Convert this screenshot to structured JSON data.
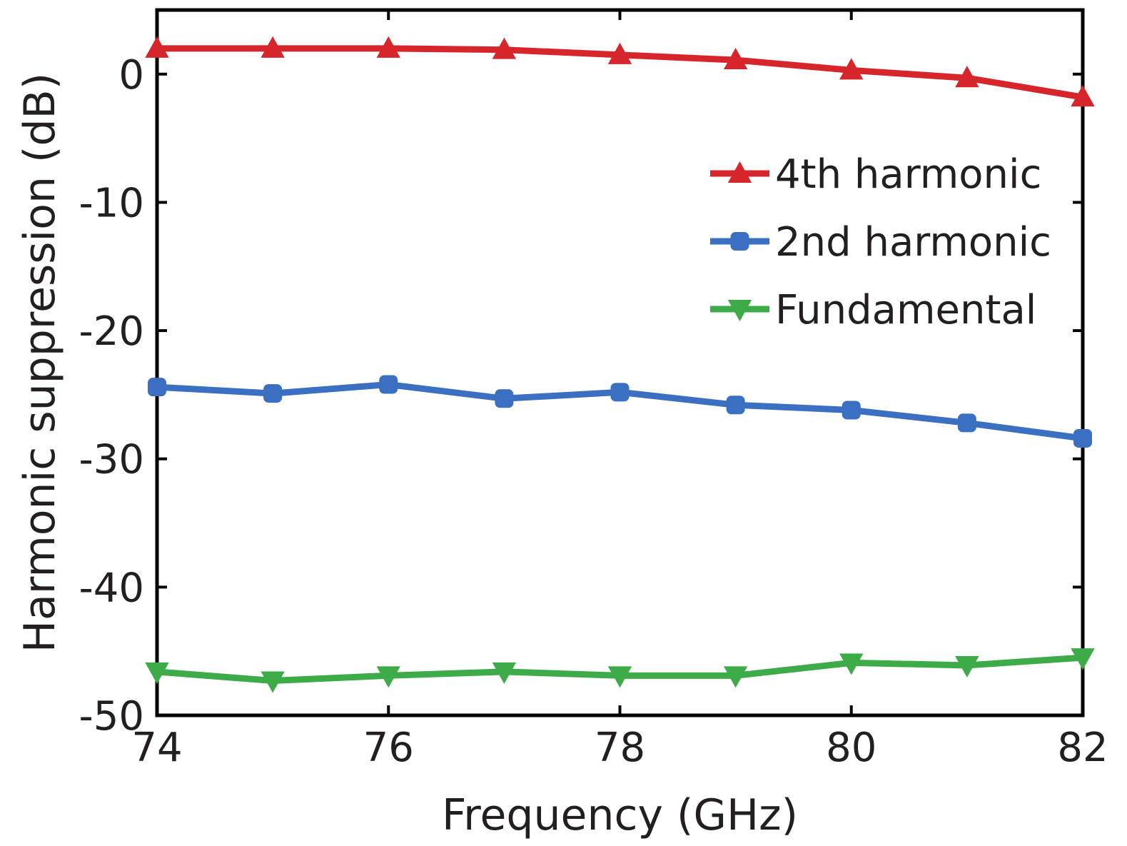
{
  "chart_data": {
    "type": "line",
    "xlabel": "Frequency (GHz)",
    "ylabel": "Harmonic suppression (dB)",
    "xlim": [
      74,
      82
    ],
    "ylim": [
      -50,
      5
    ],
    "xticks": [
      74,
      76,
      78,
      80,
      82
    ],
    "yticks": [
      0,
      -10,
      -20,
      -30,
      -40,
      -50
    ],
    "x": [
      74,
      75,
      76,
      77,
      78,
      79,
      80,
      81,
      82
    ],
    "grid": false,
    "legend_position": "top-right",
    "series": [
      {
        "name": "4th harmonic",
        "color": "#d7262b",
        "marker": "triangle-up",
        "values": [
          2.0,
          2.0,
          2.0,
          1.9,
          1.5,
          1.1,
          0.3,
          -0.3,
          -1.8
        ]
      },
      {
        "name": "2nd harmonic",
        "color": "#3a6fc2",
        "marker": "square",
        "values": [
          -24.4,
          -24.9,
          -24.2,
          -25.3,
          -24.8,
          -25.8,
          -26.2,
          -27.2,
          -28.4
        ]
      },
      {
        "name": "Fundamental",
        "color": "#3cab48",
        "marker": "triangle-down",
        "values": [
          -46.6,
          -47.3,
          -46.9,
          -46.6,
          -46.9,
          -46.9,
          -45.9,
          -46.1,
          -45.5
        ]
      }
    ]
  }
}
